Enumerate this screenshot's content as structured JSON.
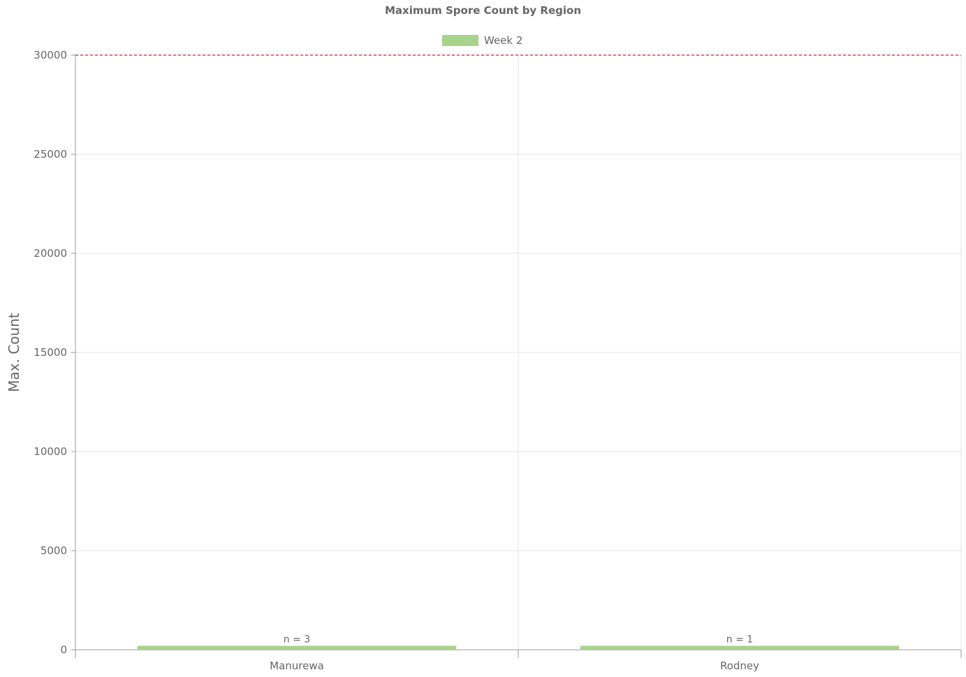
{
  "chart_data": {
    "type": "bar",
    "title": "Maximum Spore Count by Region",
    "xlabel": "",
    "ylabel": "Max. Count",
    "categories": [
      "Manurewa",
      "Rodney"
    ],
    "series": [
      {
        "name": "Week 2",
        "values": [
          200,
          200
        ],
        "color": "#a7d38a"
      }
    ],
    "data_labels": [
      "n = 3",
      "n = 1"
    ],
    "ylim": [
      0,
      30000
    ],
    "yticks": [
      0,
      5000,
      10000,
      15000,
      20000,
      25000,
      30000
    ],
    "threshold": {
      "value": 30000,
      "color": "#e04040",
      "style": "dashed"
    },
    "grid": true,
    "legend_position": "top-center"
  }
}
